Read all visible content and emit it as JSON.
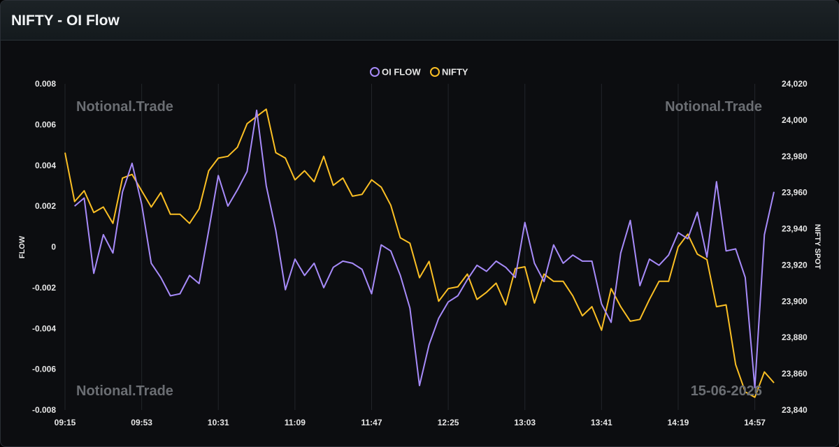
{
  "header": {
    "title": "NIFTY - OI Flow"
  },
  "watermarks": {
    "top_left": "Notional.Trade",
    "top_right": "Notional.Trade",
    "bottom_left": "Notional.Trade",
    "bottom_right": "15-06-2026"
  },
  "colors": {
    "oi_flow": "#a78bfa",
    "nifty": "#fbbf24",
    "background": "#0c0d10"
  },
  "chart_data": {
    "type": "line",
    "legend_position": "top-center",
    "grid": true,
    "x_tick_labels": [
      "09:15",
      "09:53",
      "10:31",
      "11:09",
      "11:47",
      "12:25",
      "13:03",
      "13:41",
      "14:19",
      "14:57"
    ],
    "ylabel_left": "FLOW",
    "ylabel_right": "NIFTY SPOT",
    "ylim_left": [
      -0.008,
      0.008
    ],
    "ylim_right": [
      23840,
      24020
    ],
    "yticks_left": [
      "0.008",
      "0.006",
      "0.004",
      "0.002",
      "0",
      "-0.002",
      "-0.004",
      "-0.006",
      "-0.008"
    ],
    "yticks_right": [
      "24,020",
      "24,000",
      "23,980",
      "23,960",
      "23,940",
      "23,920",
      "23,900",
      "23,880",
      "23,860",
      "23,840"
    ],
    "series": [
      {
        "name": "OI FLOW",
        "axis": "left",
        "values": [
          null,
          0.002,
          0.0024,
          -0.0013,
          0.0006,
          -0.0003,
          0.0027,
          0.0041,
          0.0021,
          -0.0008,
          -0.0015,
          -0.0024,
          -0.0023,
          -0.0014,
          -0.0018,
          0.0008,
          0.0035,
          0.002,
          0.0028,
          0.0037,
          0.0067,
          0.003,
          0.0008,
          -0.0021,
          -0.0006,
          -0.0014,
          -0.0008,
          -0.002,
          -0.001,
          -0.0007,
          -0.0008,
          -0.0011,
          -0.0023,
          0.0001,
          -0.0002,
          -0.0014,
          -0.003,
          -0.0068,
          -0.0048,
          -0.0035,
          -0.0027,
          -0.0024,
          -0.0016,
          -0.0009,
          -0.0012,
          -0.0007,
          -0.001,
          -0.0015,
          0.0012,
          -0.0008,
          -0.0017,
          0.0001,
          -0.0008,
          -0.0004,
          -0.0007,
          -0.0007,
          -0.0028,
          -0.0037,
          -0.0003,
          0.0013,
          -0.0019,
          -0.0006,
          -0.0009,
          -0.0004,
          0.0007,
          0.0004,
          0.0017,
          -0.0005,
          0.0032,
          -0.0002,
          -0.0001,
          -0.0015,
          -0.0069,
          0.0006,
          0.0027
        ]
      },
      {
        "name": "NIFTY",
        "axis": "right",
        "values": [
          23982,
          23955,
          23961,
          23949,
          23952,
          23943,
          23968,
          23970,
          23961,
          23952,
          23960,
          23948,
          23948,
          23943,
          23951,
          23972,
          23979,
          23980,
          23985,
          23998,
          24002,
          24006,
          23982,
          23979,
          23967,
          23972,
          23966,
          23980,
          23964,
          23968,
          23958,
          23959,
          23967,
          23963,
          23953,
          23935,
          23932,
          23913,
          23922,
          23900,
          23907,
          23908,
          23915,
          23901,
          23905,
          23910,
          23898,
          23918,
          23919,
          23899,
          23915,
          23911,
          23911,
          23903,
          23892,
          23897,
          23884,
          23907,
          23897,
          23889,
          23890,
          23901,
          23911,
          23911,
          23930,
          23937,
          23926,
          23923,
          23897,
          23898,
          23865,
          23850,
          23847,
          23861,
          23855
        ]
      }
    ]
  }
}
